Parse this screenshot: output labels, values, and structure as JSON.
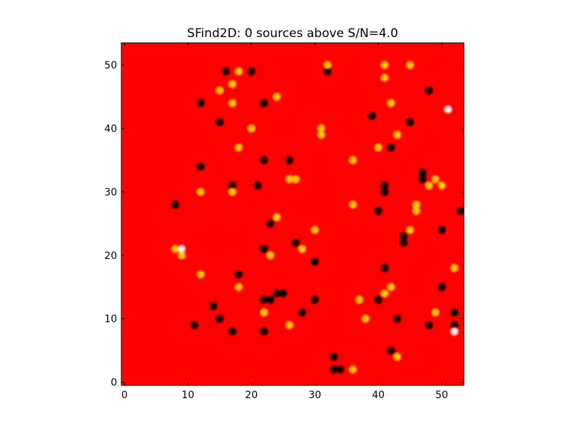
{
  "chart_data": {
    "type": "image",
    "title": "SFind2D: 0 sources above S/N=4.0",
    "background": "#ff0000",
    "xlim": [
      -0.5,
      53.5
    ],
    "ylim": [
      -0.5,
      53.5
    ],
    "xticks": [
      0,
      10,
      20,
      30,
      40,
      50
    ],
    "yticks": [
      0,
      10,
      20,
      30,
      40,
      50
    ],
    "series": [
      {
        "color": "#000000",
        "x": [
          16,
          20,
          32,
          12,
          22,
          48,
          39,
          15,
          45,
          42,
          12,
          22,
          26,
          47,
          47,
          17,
          21,
          41,
          41,
          53,
          40,
          8,
          23,
          50,
          44,
          44,
          27,
          22,
          30,
          41,
          18,
          14,
          22,
          23,
          24,
          25,
          30,
          40,
          50,
          15,
          28,
          43,
          52,
          11,
          17,
          22,
          48,
          52,
          33,
          42,
          33,
          34
        ],
        "y": [
          49,
          49,
          49,
          44,
          44,
          46,
          42,
          41,
          41,
          37,
          34,
          35,
          35,
          33,
          32,
          31,
          31,
          31,
          30,
          27,
          27,
          28,
          25,
          24,
          23,
          22,
          22,
          21,
          19,
          18,
          17,
          12,
          13,
          13,
          14,
          14,
          13,
          13,
          15,
          10,
          11,
          10,
          11,
          9,
          8,
          8,
          9,
          9,
          4,
          5,
          2,
          2
        ]
      },
      {
        "color": "#ffd700",
        "x": [
          32,
          41,
          45,
          18,
          17,
          15,
          41,
          24,
          17,
          42,
          20,
          31,
          31,
          43,
          18,
          40,
          36,
          26,
          27,
          49,
          48,
          50,
          12,
          17,
          36,
          46,
          46,
          24,
          30,
          45,
          8,
          9,
          28,
          23,
          52,
          12,
          18,
          42,
          41,
          37,
          22,
          49,
          38,
          26,
          43,
          36
        ],
        "y": [
          50,
          50,
          50,
          49,
          47,
          46,
          48,
          45,
          44,
          44,
          40,
          40,
          39,
          39,
          37,
          37,
          35,
          32,
          32,
          32,
          31,
          31,
          30,
          30,
          28,
          27,
          28,
          26,
          24,
          24,
          21,
          20,
          21,
          20,
          18,
          17,
          15,
          15,
          14,
          13,
          11,
          11,
          10,
          9,
          4,
          2
        ]
      },
      {
        "color": "#ffffff",
        "x": [
          9,
          51,
          52
        ],
        "y": [
          21,
          43,
          8
        ]
      }
    ]
  }
}
